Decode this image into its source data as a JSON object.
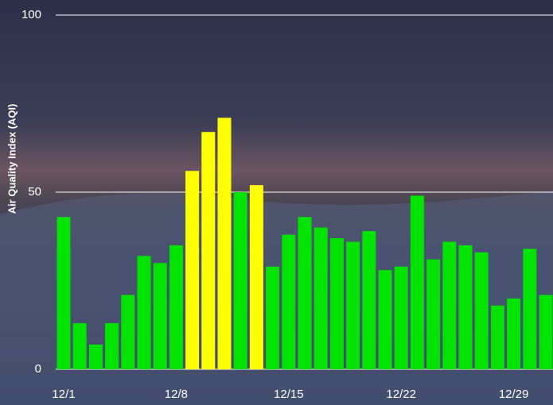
{
  "chart_data": {
    "type": "bar",
    "ylabel": "Air Quality Index (AQI)",
    "categories": [
      "12/1",
      null,
      null,
      null,
      null,
      null,
      null,
      "12/8",
      null,
      null,
      null,
      null,
      null,
      null,
      "12/15",
      null,
      null,
      null,
      null,
      null,
      null,
      "12/22",
      null,
      null,
      null,
      null,
      null,
      null,
      "12/29",
      null,
      null
    ],
    "values": [
      43,
      13,
      7,
      13,
      21,
      32,
      30,
      35,
      56,
      67,
      71,
      50,
      52,
      29,
      38,
      43,
      40,
      37,
      36,
      39,
      28,
      29,
      49,
      31,
      36,
      35,
      33,
      18,
      20,
      34,
      21
    ],
    "colors": [
      "#00e400",
      "#00e400",
      "#00e400",
      "#00e400",
      "#00e400",
      "#00e400",
      "#00e400",
      "#00e400",
      "#ffff00",
      "#ffff00",
      "#ffff00",
      "#00e400",
      "#ffff00",
      "#00e400",
      "#00e400",
      "#00e400",
      "#00e400",
      "#00e400",
      "#00e400",
      "#00e400",
      "#00e400",
      "#00e400",
      "#00e400",
      "#00e400",
      "#00e400",
      "#00e400",
      "#00e400",
      "#00e400",
      "#00e400",
      "#00e400",
      "#00e400"
    ],
    "ylim": [
      0,
      100
    ],
    "yticks": [
      0,
      50,
      100
    ],
    "grid": true
  }
}
